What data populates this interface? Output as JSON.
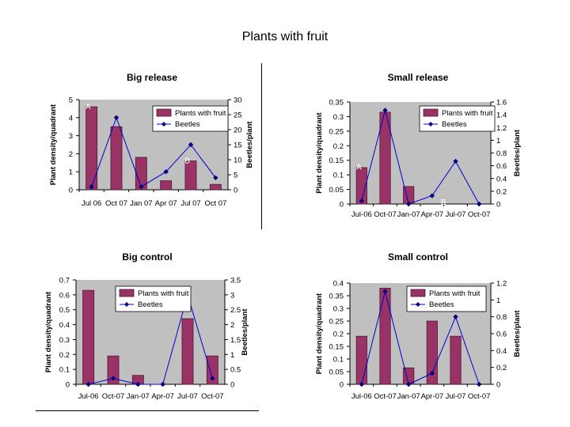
{
  "page": {
    "title": "Plants with fruit"
  },
  "colors": {
    "plot_bg": "#c0c0c0",
    "bar": "#993366",
    "bar_stroke": "#4d1a33",
    "line": "#0000cc",
    "marker": "#000080"
  },
  "chart_data": [
    {
      "type": "bar",
      "title": "Big release",
      "categories": [
        "Jul 06",
        "Oct 07",
        "Jan 07",
        "Apr 07",
        "Jul 07",
        "Oct 07"
      ],
      "ylabel": "Plant density/quadrant",
      "y2label": "Beetles/plant",
      "ylim": [
        0,
        5
      ],
      "y_ticks": [
        "0",
        "1",
        "2",
        "3",
        "4",
        "5"
      ],
      "y2lim": [
        0,
        30
      ],
      "y2_ticks": [
        "0",
        "5",
        "10",
        "15",
        "20",
        "25",
        "30"
      ],
      "grid": false,
      "legend": {
        "position": "top-right",
        "bar_label": "Plants with fruit",
        "line_label": "Beetles"
      },
      "series": [
        {
          "name": "Plants with fruit",
          "kind": "bar",
          "axis": "left",
          "values": [
            4.6,
            3.5,
            1.8,
            0.5,
            1.6,
            0.3
          ]
        },
        {
          "name": "Beetles",
          "kind": "line",
          "axis": "right",
          "values": [
            1,
            24,
            1,
            6,
            15,
            4
          ]
        }
      ],
      "annotations": [
        {
          "text": "A",
          "at": [
            0,
            5
          ]
        },
        {
          "text": "B",
          "at": [
            4,
            2
          ]
        }
      ]
    },
    {
      "type": "bar",
      "title": "Small release",
      "categories": [
        "Jul-06",
        "Oct-07",
        "Jan-07",
        "Apr-07",
        "Jul-07",
        "Oct-07"
      ],
      "ylabel": "Plant density/quadrant",
      "y2label": "Beetles/plant",
      "ylim": [
        0,
        0.35
      ],
      "y_ticks": [
        "0",
        "0.05",
        "0.1",
        "0.15",
        "0.2",
        "0.25",
        "0.3",
        "0.35"
      ],
      "y2lim": [
        0,
        1.6
      ],
      "y2_ticks": [
        "0",
        "0.2",
        "0.4",
        "0.6",
        "0.8",
        "1",
        "1.2",
        "1.4",
        "1.6"
      ],
      "grid": false,
      "legend": {
        "position": "top-right",
        "bar_label": "Plants with fruit",
        "line_label": "Beetles"
      },
      "series": [
        {
          "name": "Plants with fruit",
          "kind": "bar",
          "axis": "left",
          "values": [
            0.125,
            0.315,
            0.06,
            0,
            0,
            0
          ]
        },
        {
          "name": "Beetles",
          "kind": "line",
          "axis": "right",
          "values": [
            0.05,
            1.47,
            0,
            0.13,
            0.67,
            0
          ]
        }
      ],
      "annotations": [
        {
          "text": "A",
          "at": [
            0,
            0.15
          ]
        },
        {
          "text": "B",
          "at": [
            3.6,
            0.03
          ]
        }
      ]
    },
    {
      "type": "bar",
      "title": "Big control",
      "categories": [
        "Jul-06",
        "Oct-07",
        "Jan-07",
        "Apr-07",
        "Jul-07",
        "Oct-07"
      ],
      "ylabel": "Plant density/quadrant",
      "y2label": "Beetles/plant",
      "ylim": [
        0,
        0.7
      ],
      "y_ticks": [
        "0",
        "0.1",
        "0.2",
        "0.3",
        "0.4",
        "0.5",
        "0.6",
        "0.7"
      ],
      "y2lim": [
        0,
        3.5
      ],
      "y2_ticks": [
        "0",
        "0.5",
        "1",
        "1.5",
        "2",
        "2.5",
        "3",
        "3.5"
      ],
      "grid": false,
      "legend": {
        "position": "top-right",
        "bar_label": "Plants with fruit",
        "line_label": "Beetles"
      },
      "series": [
        {
          "name": "Plants with fruit",
          "kind": "bar",
          "axis": "left",
          "values": [
            0.63,
            0.19,
            0.06,
            0,
            0.44,
            0.19
          ]
        },
        {
          "name": "Beetles",
          "kind": "line",
          "axis": "right",
          "values": [
            0,
            0.2,
            0,
            0,
            3.0,
            0.2
          ]
        }
      ],
      "annotations": []
    },
    {
      "type": "bar",
      "title": "Small control",
      "categories": [
        "Jul-06",
        "Oct-07",
        "Jan-07",
        "Apr-07",
        "Jul-07",
        "Oct-07"
      ],
      "ylabel": "Plant density/quadrant",
      "y2label": "Beetles/plant",
      "ylim": [
        0,
        0.4
      ],
      "y_ticks": [
        "0",
        "0.05",
        "0.1",
        "0.15",
        "0.2",
        "0.25",
        "0.3",
        "0.35",
        "0.4"
      ],
      "y2lim": [
        0,
        1.2
      ],
      "y2_ticks": [
        "0",
        "0.2",
        "0.4",
        "0.6",
        "0.8",
        "1",
        "1.2"
      ],
      "grid": false,
      "legend": {
        "position": "top-right",
        "bar_label": "Plants with fruit",
        "line_label": "Beetles"
      },
      "series": [
        {
          "name": "Plants with fruit",
          "kind": "bar",
          "axis": "left",
          "values": [
            0.19,
            0.38,
            0.065,
            0.25,
            0.19,
            0
          ]
        },
        {
          "name": "Beetles",
          "kind": "line",
          "axis": "right",
          "values": [
            0,
            1.1,
            0,
            0.13,
            0.8,
            0
          ]
        }
      ],
      "annotations": []
    }
  ]
}
